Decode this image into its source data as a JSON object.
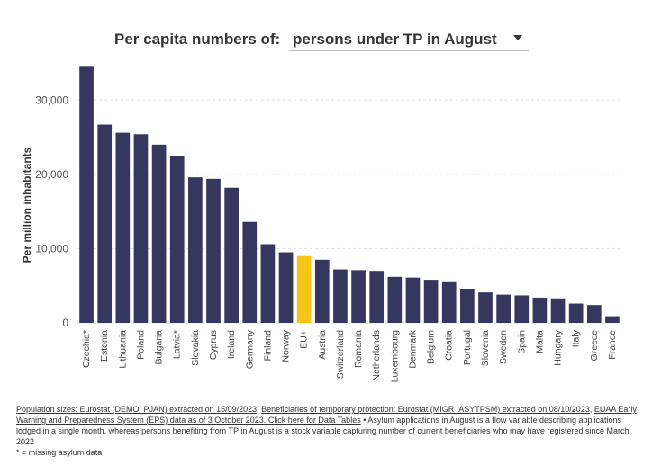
{
  "header": {
    "label": "Per capita numbers of:",
    "selected": "persons under TP in August"
  },
  "chart_data": {
    "type": "bar",
    "title": "",
    "xlabel": "",
    "ylabel": "Per million inhabitants",
    "ylim": [
      0,
      35000
    ],
    "yticks": [
      0,
      10000,
      20000,
      30000
    ],
    "ytick_labels": [
      "0",
      "10,000",
      "20,000",
      "30,000"
    ],
    "grid": "horizontal dotted",
    "colors": {
      "default": "#35375e",
      "highlight": "#f5c518"
    },
    "highlight_category": "EU+",
    "categories": [
      "Czechia*",
      "Estonia",
      "Lithuania",
      "Poland",
      "Bulgaria",
      "Latvia*",
      "Slovakia",
      "Cyprus",
      "Ireland",
      "Germany",
      "Finland",
      "Norway",
      "EU+",
      "Austria",
      "Switzerland",
      "Romania",
      "Netherlands",
      "Luxembourg",
      "Denmark",
      "Belgium",
      "Croatia",
      "Portugal",
      "Slovenia",
      "Sweden",
      "Spain",
      "Malta",
      "Hungary",
      "Italy",
      "Greece",
      "France"
    ],
    "values": [
      34600,
      26700,
      25600,
      25400,
      24000,
      22500,
      19600,
      19400,
      18200,
      13600,
      10600,
      9500,
      9000,
      8500,
      7200,
      7100,
      7000,
      6200,
      6100,
      5800,
      5600,
      4600,
      4100,
      3800,
      3700,
      3400,
      3300,
      2600,
      2400,
      900
    ]
  },
  "footer": {
    "link1": "Population sizes: Eurostat (DEMO_PJAN) extracted on 15/09/2023",
    "sep1": ", ",
    "link2": "Beneficiaries of temporary protection: Eurostat (MIGR_ASYTPSM) extracted on 08/10/2023",
    "sep2": ", ",
    "link3": "EUAA Early Warning and Preparedness System (EPS) data as of 3 October 2023. Click here for Data Tables",
    "note": " • Asylum applications in August is a flow variable describing applications lodged in a single month, whereas persons benefiting from TP in August is a stock variable capturing number of current beneficiaries who may have registered since March 2022",
    "footnote": "* = missing asylum data"
  }
}
